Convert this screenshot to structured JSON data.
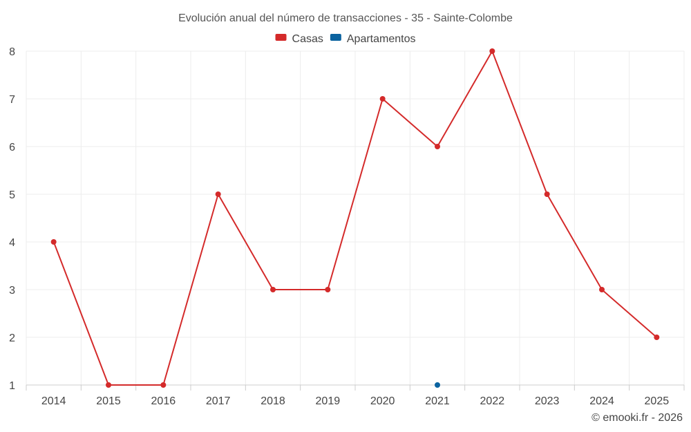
{
  "chart_data": {
    "type": "line",
    "title": "Evolución anual del número de transacciones - 35 - Sainte-Colombe",
    "categories": [
      "2014",
      "2015",
      "2016",
      "2017",
      "2018",
      "2019",
      "2020",
      "2021",
      "2022",
      "2023",
      "2024",
      "2025"
    ],
    "series": [
      {
        "name": "Casas",
        "color": "#d42a2a",
        "values": [
          4,
          1,
          1,
          5,
          3,
          3,
          7,
          6,
          8,
          5,
          3,
          2
        ]
      },
      {
        "name": "Apartamentos",
        "color": "#0b63a0",
        "values": [
          null,
          null,
          null,
          null,
          null,
          null,
          null,
          1,
          null,
          null,
          null,
          null
        ]
      }
    ],
    "ylim": [
      1,
      8
    ],
    "yticks": [
      "1",
      "2",
      "3",
      "4",
      "5",
      "6",
      "7",
      "8"
    ],
    "grid": true,
    "legend": "top-center",
    "credit": "© emooki.fr - 2026"
  }
}
